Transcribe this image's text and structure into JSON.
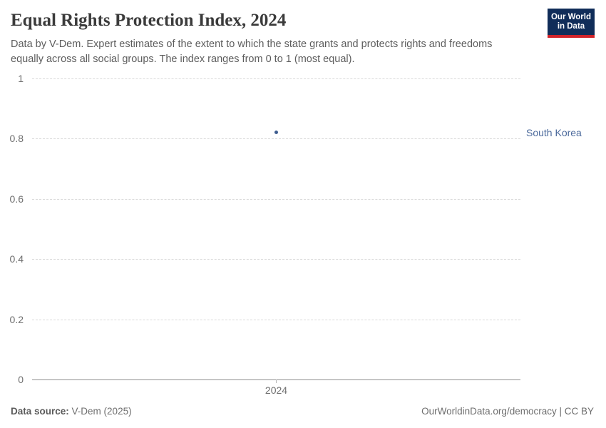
{
  "header": {
    "title": "Equal Rights Protection Index, 2024",
    "subtitle": "Data by V-Dem. Expert estimates of the extent to which the state grants and protects rights and freedoms equally across all social groups. The index ranges from 0 to 1 (most equal).",
    "logo": {
      "line1": "Our World",
      "line2": "in Data",
      "bg_color": "#102d59",
      "bar_color": "#d12329"
    }
  },
  "chart_data": {
    "type": "scatter",
    "title": "Equal Rights Protection Index, 2024",
    "x": [
      2024
    ],
    "series": [
      {
        "name": "South Korea",
        "values": [
          0.82
        ],
        "color": "#3d5c8f",
        "label_color": "#4c6a9c"
      }
    ],
    "ylim": [
      0,
      1
    ],
    "yticks": [
      0,
      0.2,
      0.4,
      0.6,
      0.8,
      1
    ],
    "xlabel": "",
    "ylabel": "",
    "grid": "horizontal-dashed",
    "legend_position": "right-inline-label"
  },
  "footer": {
    "source_label": "Data source:",
    "source_value": "V-Dem (2025)",
    "attribution_url": "OurWorldinData.org/democracy",
    "attribution_separator": " | ",
    "attribution_license": "CC BY"
  }
}
